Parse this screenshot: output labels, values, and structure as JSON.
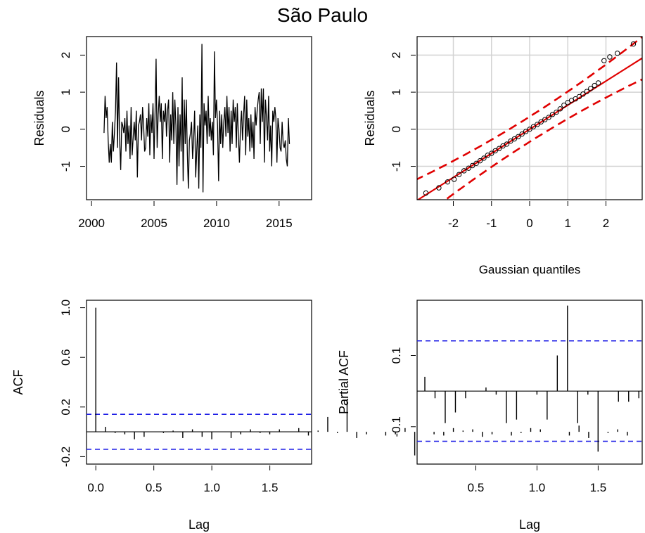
{
  "title": "São Paulo",
  "chart_data": [
    {
      "type": "line",
      "title": "",
      "xlabel": "",
      "ylabel": "Residuals",
      "xlim": [
        1999.6,
        2017.6
      ],
      "ylim": [
        -1.9,
        2.5
      ],
      "x_ticks": [
        "2000",
        "2005",
        "2010",
        "2015"
      ],
      "y_ticks": [
        "-1",
        "0",
        "1",
        "2"
      ],
      "x_start": 2001.0,
      "x_step": 0.0833,
      "values": [
        -0.1,
        0.9,
        0.3,
        0.6,
        -0.3,
        -0.9,
        -0.4,
        -0.9,
        0.2,
        -0.6,
        -0.1,
        0.5,
        1.8,
        -0.5,
        1.4,
        -0.3,
        -1.1,
        0.2,
        0.1,
        -0.1,
        0.3,
        -0.6,
        0.5,
        -0.4,
        0.1,
        -0.8,
        0.6,
        -0.7,
        -0.2,
        0.2,
        -0.3,
        0.5,
        -1.3,
        0.1,
        0.2,
        0.4,
        -0.3,
        0.6,
        0.1,
        -0.6,
        -0.5,
        0.3,
        -0.2,
        0.7,
        -0.7,
        0.4,
        -0.1,
        0.7,
        -0.8,
        0.5,
        1.9,
        -0.5,
        0.4,
        0.9,
        0.2,
        0.7,
        -0.8,
        0.5,
        0.2,
        0.7,
        -0.2,
        0.5,
        0.8,
        -0.9,
        0.4,
        -0.3,
        1.0,
        -0.4,
        0.8,
        0.1,
        -1.5,
        0.6,
        -1.0,
        0.4,
        -0.6,
        1.4,
        -1.4,
        0.8,
        -0.4,
        0.8,
        -0.7,
        -1.6,
        -0.3,
        -0.1,
        0.2,
        -0.8,
        -0.3,
        0.5,
        -1.3,
        -0.6,
        0.1,
        -1.6,
        0.4,
        -0.5,
        2.3,
        -1.7,
        0.7,
        0.1,
        0.5,
        -0.4,
        0.9,
        -0.2,
        0.3,
        -0.3,
        0.2,
        -0.7,
        2.1,
        0.3,
        0.8,
        0.1,
        -1.4,
        0.5,
        -0.4,
        0.4,
        -0.5,
        0.2,
        0.6,
        -0.2,
        0.9,
        -0.1,
        0.6,
        -0.6,
        0.5,
        -0.4,
        0.8,
        0.2,
        0.6,
        -0.5,
        0.7,
        -0.2,
        -0.9,
        0.1,
        0.5,
        -0.3,
        0.4,
        0.9,
        -0.7,
        0.8,
        -0.2,
        0.3,
        -0.6,
        0.4,
        -0.5,
        0.2,
        -0.8,
        0.6,
        0.1,
        0.5,
        0.8,
        1.0,
        -0.4,
        1.1,
        0.2,
        1.1,
        -0.9,
        0.8,
        0.3,
        -0.3,
        0.9,
        -0.6,
        0.1,
        -1.0,
        0.5,
        0.2,
        0.6,
        0.3,
        -0.9,
        0.3,
        0.0,
        -0.5,
        -0.6,
        0.2,
        -0.4,
        -0.5,
        -0.3,
        -0.8,
        -1.0,
        0.3,
        -0.4
      ]
    },
    {
      "type": "scatter",
      "title": "",
      "xlabel": "Gaussian quantiles",
      "ylabel": "Residuals",
      "xlim": [
        -2.95,
        2.95
      ],
      "ylim": [
        -1.9,
        2.5
      ],
      "x_ticks": [
        "-2",
        "-1",
        "0",
        "1",
        "2"
      ],
      "y_ticks": [
        "-1",
        "0",
        "1",
        "2"
      ],
      "grid": true,
      "reference_line": {
        "intercept": 0.0,
        "slope": 0.65
      },
      "envelope_halfwidth": [
        0.58,
        0.1,
        0.58
      ],
      "points_x": [
        -2.72,
        -2.38,
        -2.15,
        -1.98,
        -1.85,
        -1.72,
        -1.6,
        -1.5,
        -1.4,
        -1.3,
        -1.2,
        -1.1,
        -1.0,
        -0.9,
        -0.8,
        -0.7,
        -0.6,
        -0.5,
        -0.4,
        -0.3,
        -0.2,
        -0.1,
        0.0,
        0.1,
        0.2,
        0.3,
        0.4,
        0.5,
        0.6,
        0.7,
        0.8,
        0.9,
        1.0,
        1.1,
        1.2,
        1.3,
        1.4,
        1.5,
        1.6,
        1.7,
        1.8,
        1.95,
        2.1,
        2.3,
        2.72
      ],
      "points_y": [
        -1.72,
        -1.58,
        -1.42,
        -1.35,
        -1.22,
        -1.12,
        -1.05,
        -0.98,
        -0.92,
        -0.85,
        -0.78,
        -0.7,
        -0.65,
        -0.58,
        -0.52,
        -0.45,
        -0.4,
        -0.32,
        -0.26,
        -0.2,
        -0.13,
        -0.06,
        0.0,
        0.07,
        0.13,
        0.2,
        0.26,
        0.32,
        0.4,
        0.46,
        0.55,
        0.65,
        0.72,
        0.78,
        0.82,
        0.88,
        0.95,
        1.02,
        1.1,
        1.18,
        1.25,
        1.85,
        1.95,
        2.05,
        2.3
      ]
    },
    {
      "type": "bar",
      "title": "",
      "xlabel": "Lag",
      "ylabel": "ACF",
      "xlim": [
        -0.08,
        1.86
      ],
      "ylim": [
        -0.26,
        1.06
      ],
      "x_ticks": [
        "0.0",
        "0.5",
        "1.0",
        "1.5"
      ],
      "y_ticks": [
        "-0.2",
        "0.2",
        "0.6",
        "1.0"
      ],
      "confidence_bound": 0.141,
      "lag_step": 0.0833,
      "values": [
        1.0,
        0.04,
        -0.01,
        -0.02,
        -0.06,
        -0.04,
        0.0,
        -0.01,
        0.01,
        -0.05,
        0.02,
        -0.04,
        -0.06,
        0.0,
        -0.05,
        -0.02,
        0.02,
        -0.01,
        -0.02,
        0.02,
        0.0,
        0.03,
        -0.03,
        0.01,
        0.12,
        -0.01,
        0.25,
        -0.05,
        -0.02,
        0.0,
        -0.03,
        -0.02,
        0.03,
        -0.19,
        0.0,
        -0.02,
        -0.03,
        0.03,
        0.01,
        0.02,
        -0.04,
        -0.02,
        0.0,
        -0.03,
        -0.01,
        0.03,
        0.02,
        0.0,
        0.0,
        -0.03,
        0.05,
        -0.05,
        0.0,
        -0.01,
        0.02,
        -0.03
      ]
    },
    {
      "type": "bar",
      "title": "",
      "xlabel": "Lag",
      "ylabel": "Partial ACF",
      "xlim": [
        0.02,
        1.86
      ],
      "ylim": [
        -0.205,
        0.255
      ],
      "x_ticks": [
        "0.5",
        "1.0",
        "1.5"
      ],
      "y_ticks": [
        "-0.1",
        "0.1"
      ],
      "confidence_bound": 0.141,
      "lag_step": 0.0833,
      "values": [
        0.04,
        -0.02,
        -0.09,
        -0.06,
        -0.02,
        0.0,
        0.01,
        -0.01,
        -0.09,
        -0.08,
        0.0,
        -0.01,
        -0.08,
        0.1,
        0.24,
        -0.09,
        -0.01,
        -0.17,
        0.0,
        -0.03,
        -0.03,
        -0.02,
        -0.03,
        -0.01,
        0.0,
        -0.03,
        0.01,
        -0.05,
        0.02,
        0.0,
        -0.02,
        0.03,
        -0.01,
        -0.02,
        0.01,
        0.0,
        -0.03,
        0.02,
        0.01,
        -0.01,
        0.0,
        -0.02,
        0.02,
        -0.01,
        0.0,
        0.01,
        -0.03,
        0.02,
        0.0,
        -0.01,
        0.01,
        -0.02,
        0.02,
        -0.01,
        0.0
      ]
    }
  ]
}
